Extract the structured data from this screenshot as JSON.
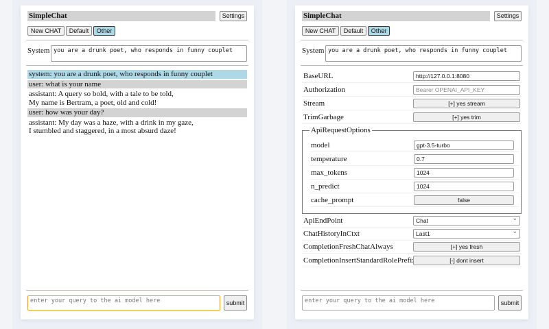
{
  "app": {
    "title": "SimpleChat",
    "settings_label": "Settings",
    "new_chat": "New CHAT",
    "default": "Default",
    "other": "Other",
    "system_label": "System",
    "system_prompt": "you are a drunk poet, who responds in funny couplet",
    "query_placeholder": "enter your query to the ai model here",
    "submit": "submit"
  },
  "chat": [
    {
      "role": "system",
      "lines": [
        "system: you are a drunk poet, who responds in funny couplet"
      ]
    },
    {
      "role": "user",
      "lines": [
        "user: what is your name"
      ]
    },
    {
      "role": "assistant",
      "lines": [
        "assistant: A query so bold, with a tale to be told,",
        "My name is Bertram, a poet, old and cold!"
      ]
    },
    {
      "role": "user",
      "lines": [
        "user: how was your day?"
      ]
    },
    {
      "role": "assistant",
      "lines": [
        "assistant: My day was a haze, with a drink in my gaze,",
        "I stumbled and staggered, in a most absurd daze!"
      ]
    }
  ],
  "settings": {
    "baseurl": {
      "label": "BaseURL",
      "value": "http://127.0.0.1:8080"
    },
    "authorization": {
      "label": "Authorization",
      "placeholder": "Bearer OPENAI_API_KEY"
    },
    "stream": {
      "label": "Stream",
      "value": "[+] yes stream"
    },
    "trim": {
      "label": "TrimGarbage",
      "value": "[+] yes trim"
    },
    "api_options": {
      "legend": "ApiRequestOptions",
      "model": {
        "label": "model",
        "value": "gpt-3.5-turbo"
      },
      "temperature": {
        "label": "temperature",
        "value": "0.7"
      },
      "max_tokens": {
        "label": "max_tokens",
        "value": "1024"
      },
      "n_predict": {
        "label": "n_predict",
        "value": "1024"
      },
      "cache_prompt": {
        "label": "cache_prompt",
        "value": "false"
      }
    },
    "endpoint": {
      "label": "ApiEndPoint",
      "value": "Chat"
    },
    "history": {
      "label": "ChatHistoryInCtxt",
      "value": "Last1"
    },
    "fresh": {
      "label": "CompletionFreshChatAlways",
      "value": "[+] yes fresh"
    },
    "prefix": {
      "label": "CompletionInsertStandardRolePrefix",
      "value": "[-] dont insert"
    }
  },
  "colors": {
    "system_bg": "#add8e6",
    "user_bg": "#d3d3d3",
    "selected_button": "#add8e6",
    "focus_border": "#e0a030"
  }
}
